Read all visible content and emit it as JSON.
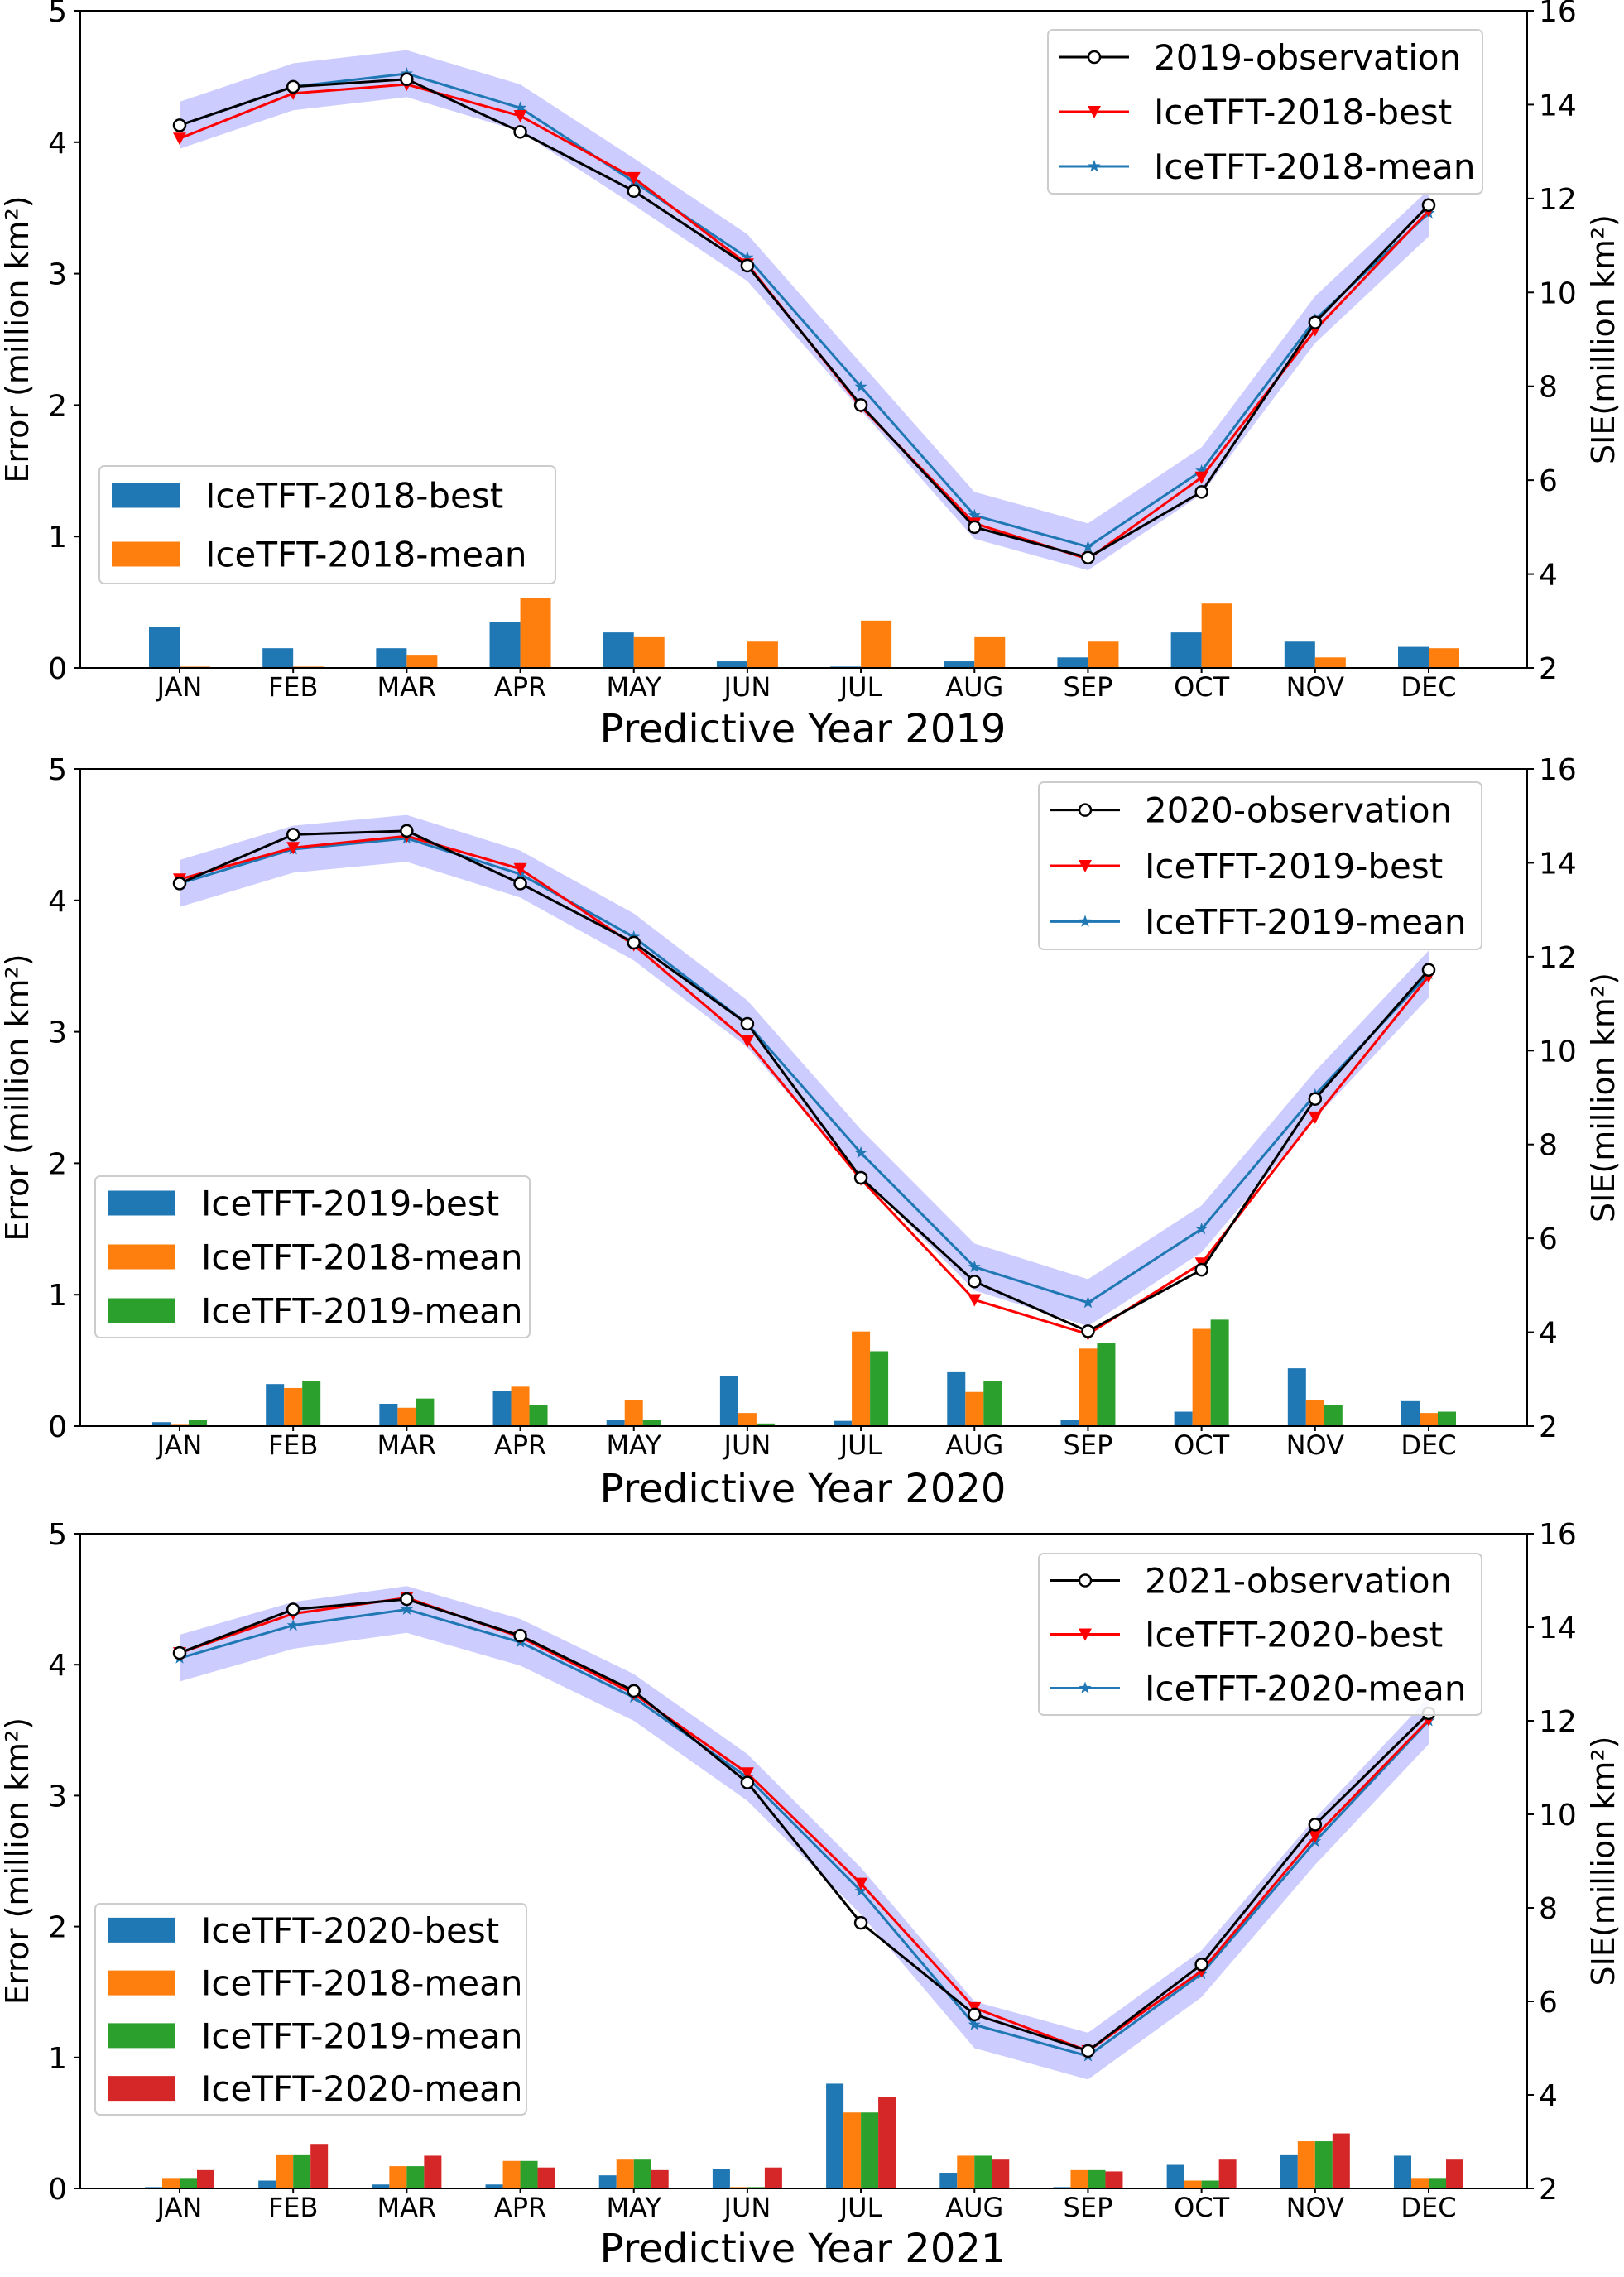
{
  "chart_data": [
    {
      "type": "bar+line",
      "title": "Predictive Year 2019",
      "ylabel_left": "Error (million km²)",
      "ylabel_right": "SIE(million km²)",
      "ylim_left": [
        0,
        5
      ],
      "yticks_left": [
        "0",
        "1",
        "2",
        "3",
        "4",
        "5"
      ],
      "ylim_right": [
        2,
        16
      ],
      "yticks_right": [
        "2",
        "4",
        "6",
        "8",
        "10",
        "12",
        "14",
        "16"
      ],
      "categories": [
        "JAN",
        "FEB",
        "MAR",
        "APR",
        "MAY",
        "JUN",
        "JUL",
        "AUG",
        "SEP",
        "OCT",
        "NOV",
        "DEC"
      ],
      "bar_series": [
        {
          "name": "IceTFT-2018-best",
          "color": "#1f77b4",
          "values": [
            0.31,
            0.15,
            0.15,
            0.35,
            0.27,
            0.05,
            0.01,
            0.05,
            0.08,
            0.27,
            0.2,
            0.16
          ]
        },
        {
          "name": "IceTFT-2018-mean",
          "color": "#ff7f0e",
          "values": [
            0.01,
            0.01,
            0.1,
            0.53,
            0.24,
            0.2,
            0.36,
            0.24,
            0.2,
            0.49,
            0.08,
            0.15
          ]
        }
      ],
      "line_series": [
        {
          "name": "2019-observation",
          "color": "#000000",
          "marker": "circle",
          "values": [
            13.56,
            14.38,
            14.54,
            13.42,
            12.16,
            10.57,
            7.6,
            5.0,
            4.35,
            5.75,
            9.36,
            11.86
          ]
        },
        {
          "name": "IceTFT-2018-best",
          "color": "#ff0000",
          "marker": "triangle-down",
          "values": [
            13.28,
            14.24,
            14.43,
            13.76,
            12.44,
            10.6,
            7.57,
            5.08,
            4.32,
            6.06,
            9.2,
            11.74
          ]
        },
        {
          "name": "IceTFT-2018-mean",
          "color": "#1f77b4",
          "marker": "star",
          "values": [
            13.56,
            14.38,
            14.66,
            13.93,
            12.36,
            10.74,
            7.99,
            5.25,
            4.58,
            6.2,
            9.42,
            11.69
          ]
        }
      ],
      "band": {
        "color": "#0000ff",
        "opacity": 0.2,
        "around": "mean",
        "halfwidth": 0.5
      },
      "line_legend": "top-right",
      "bar_legend": "lower-left",
      "grid": false
    },
    {
      "type": "bar+line",
      "title": "Predictive Year 2020",
      "ylabel_left": "Error (million km²)",
      "ylabel_right": "SIE(million km²)",
      "ylim_left": [
        0,
        5
      ],
      "yticks_left": [
        "0",
        "1",
        "2",
        "3",
        "4",
        "5"
      ],
      "ylim_right": [
        2,
        16
      ],
      "yticks_right": [
        "2",
        "4",
        "6",
        "8",
        "10",
        "12",
        "14",
        "16"
      ],
      "categories": [
        "JAN",
        "FEB",
        "MAR",
        "APR",
        "MAY",
        "JUN",
        "JUL",
        "AUG",
        "SEP",
        "OCT",
        "NOV",
        "DEC"
      ],
      "bar_series": [
        {
          "name": "IceTFT-2019-best",
          "color": "#1f77b4",
          "values": [
            0.03,
            0.32,
            0.17,
            0.27,
            0.05,
            0.38,
            0.04,
            0.41,
            0.05,
            0.11,
            0.44,
            0.19
          ]
        },
        {
          "name": "IceTFT-2018-mean",
          "color": "#ff7f0e",
          "values": [
            0.01,
            0.29,
            0.14,
            0.3,
            0.2,
            0.1,
            0.72,
            0.26,
            0.59,
            0.74,
            0.2,
            0.1
          ]
        },
        {
          "name": "IceTFT-2019-mean",
          "color": "#2ca02c",
          "values": [
            0.05,
            0.34,
            0.21,
            0.16,
            0.05,
            0.02,
            0.57,
            0.34,
            0.63,
            0.81,
            0.16,
            0.11
          ]
        }
      ],
      "line_series": [
        {
          "name": "2020-observation",
          "color": "#000000",
          "marker": "circle",
          "values": [
            13.56,
            14.6,
            14.68,
            13.56,
            12.3,
            10.57,
            7.29,
            5.08,
            4.02,
            5.33,
            8.97,
            11.72
          ]
        },
        {
          "name": "IceTFT-2019-best",
          "color": "#ff0000",
          "marker": "triangle-down",
          "values": [
            13.65,
            14.32,
            14.57,
            13.87,
            12.25,
            10.2,
            7.26,
            4.69,
            3.96,
            5.47,
            8.58,
            11.58
          ]
        },
        {
          "name": "IceTFT-2019-mean",
          "color": "#1f77b4",
          "marker": "star",
          "values": [
            13.56,
            14.29,
            14.52,
            13.76,
            12.42,
            10.57,
            7.82,
            5.39,
            4.63,
            6.2,
            9.06,
            11.63
          ]
        }
      ],
      "band": {
        "color": "#0000ff",
        "opacity": 0.2,
        "around": "mean",
        "halfwidth": 0.5
      },
      "line_legend": "top-right",
      "bar_legend": "lower-left",
      "grid": false
    },
    {
      "type": "bar+line",
      "title": "Predictive Year 2021",
      "ylabel_left": "Error (million km²)",
      "ylabel_right": "SIE(million km²)",
      "ylim_left": [
        0,
        5
      ],
      "yticks_left": [
        "0",
        "1",
        "2",
        "3",
        "4",
        "5"
      ],
      "ylim_right": [
        2,
        16
      ],
      "yticks_right": [
        "2",
        "4",
        "6",
        "8",
        "10",
        "12",
        "14",
        "16"
      ],
      "categories": [
        "JAN",
        "FEB",
        "MAR",
        "APR",
        "MAY",
        "JUN",
        "JUL",
        "AUG",
        "SEP",
        "OCT",
        "NOV",
        "DEC"
      ],
      "bar_series": [
        {
          "name": "IceTFT-2020-best",
          "color": "#1f77b4",
          "values": [
            0.01,
            0.06,
            0.03,
            0.03,
            0.1,
            0.15,
            0.8,
            0.12,
            0.01,
            0.18,
            0.26,
            0.25
          ]
        },
        {
          "name": "IceTFT-2018-mean",
          "color": "#ff7f0e",
          "values": [
            0.08,
            0.26,
            0.17,
            0.21,
            0.22,
            0.01,
            0.58,
            0.25,
            0.14,
            0.06,
            0.36,
            0.08
          ]
        },
        {
          "name": "IceTFT-2019-mean",
          "color": "#2ca02c",
          "values": [
            0.08,
            0.26,
            0.17,
            0.21,
            0.22,
            0.01,
            0.58,
            0.25,
            0.14,
            0.06,
            0.36,
            0.08
          ]
        },
        {
          "name": "IceTFT-2020-mean",
          "color": "#d62728",
          "values": [
            0.14,
            0.34,
            0.25,
            0.16,
            0.14,
            0.16,
            0.7,
            0.22,
            0.13,
            0.22,
            0.42,
            0.22
          ]
        }
      ],
      "line_series": [
        {
          "name": "2021-observation",
          "color": "#000000",
          "marker": "circle",
          "values": [
            13.45,
            14.38,
            14.6,
            13.82,
            12.64,
            10.68,
            7.68,
            5.72,
            4.94,
            6.79,
            9.78,
            12.16
          ]
        },
        {
          "name": "IceTFT-2020-best",
          "color": "#ff0000",
          "marker": "triangle-down",
          "values": [
            13.45,
            14.29,
            14.63,
            13.79,
            12.58,
            10.88,
            8.52,
            5.86,
            4.94,
            6.65,
            9.53,
            12.02
          ]
        },
        {
          "name": "IceTFT-2020-mean",
          "color": "#1f77b4",
          "marker": "star",
          "values": [
            13.34,
            14.04,
            14.38,
            13.68,
            12.5,
            10.79,
            8.36,
            5.5,
            4.83,
            6.59,
            9.42,
            12.0
          ]
        }
      ],
      "band": {
        "color": "#0000ff",
        "opacity": 0.2,
        "around": "mean",
        "halfwidth": 0.5
      },
      "line_legend": "top-right",
      "bar_legend": "lower-left",
      "grid": false
    }
  ]
}
